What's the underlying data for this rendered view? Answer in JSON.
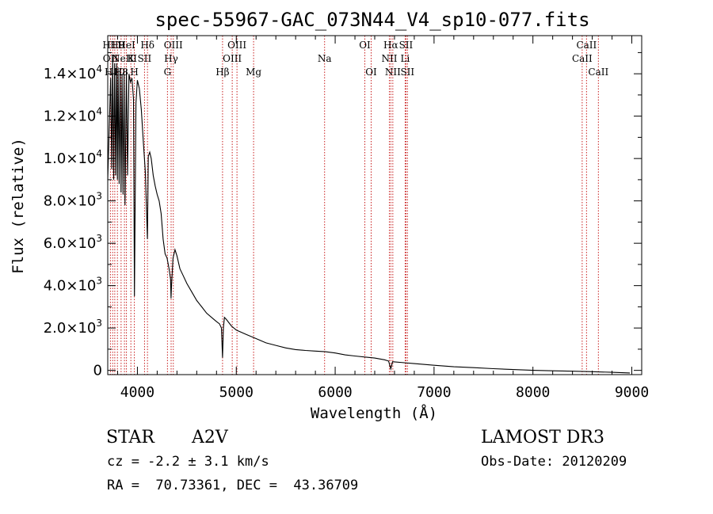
{
  "chart_data": {
    "type": "line",
    "title": "spec-55967-GAC_073N44_V4_sp10-077.fits",
    "xlabel": "Wavelength (Å)",
    "ylabel": "Flux (relative)",
    "xlim": [
      3700,
      9100
    ],
    "ylim": [
      -200,
      15800
    ],
    "x_ticks": [
      4000,
      5000,
      6000,
      7000,
      8000,
      9000
    ],
    "y_ticks": [
      {
        "value": 0,
        "mantissa": "0",
        "exp": ""
      },
      {
        "value": 2000,
        "mantissa": "2.0×10",
        "exp": "3"
      },
      {
        "value": 4000,
        "mantissa": "4.0×10",
        "exp": "3"
      },
      {
        "value": 6000,
        "mantissa": "6.0×10",
        "exp": "3"
      },
      {
        "value": 8000,
        "mantissa": "8.0×10",
        "exp": "3"
      },
      {
        "value": 10000,
        "mantissa": "1.0×10",
        "exp": "4"
      },
      {
        "value": 12000,
        "mantissa": "1.2×10",
        "exp": "4"
      },
      {
        "value": 14000,
        "mantissa": "1.4×10",
        "exp": "4"
      }
    ],
    "series": [
      {
        "name": "spectrum",
        "x": [
          3700,
          3730,
          3740,
          3750,
          3760,
          3770,
          3780,
          3790,
          3798,
          3805,
          3815,
          3825,
          3835,
          3845,
          3855,
          3865,
          3875,
          3889,
          3900,
          3915,
          3930,
          3945,
          3960,
          3970,
          3985,
          4000,
          4020,
          4040,
          4060,
          4080,
          4101,
          4110,
          4125,
          4140,
          4160,
          4180,
          4200,
          4220,
          4240,
          4260,
          4280,
          4300,
          4320,
          4335,
          4340,
          4345,
          4360,
          4380,
          4400,
          4430,
          4460,
          4500,
          4550,
          4600,
          4650,
          4700,
          4750,
          4800,
          4830,
          4850,
          4861,
          4870,
          4880,
          4900,
          4950,
          5000,
          5100,
          5200,
          5300,
          5400,
          5500,
          5600,
          5700,
          5800,
          5900,
          6000,
          6100,
          6200,
          6300,
          6400,
          6500,
          6540,
          6563,
          6580,
          6600,
          6700,
          6800,
          7000,
          7200,
          7400,
          7600,
          7800,
          8000,
          8200,
          8400,
          8600,
          8800,
          8980
        ],
        "y": [
          9000,
          13800,
          9500,
          14800,
          9000,
          14500,
          9200,
          14500,
          9000,
          14300,
          8800,
          14200,
          8400,
          14000,
          8300,
          14000,
          7800,
          14200,
          9200,
          14000,
          13600,
          13800,
          12800,
          3500,
          12600,
          13700,
          13300,
          12300,
          10800,
          9400,
          6200,
          10100,
          10300,
          10000,
          9200,
          8700,
          8300,
          8000,
          7400,
          6200,
          5500,
          5300,
          4800,
          4300,
          3400,
          4000,
          5300,
          5700,
          5400,
          4800,
          4500,
          4100,
          3700,
          3300,
          3000,
          2700,
          2500,
          2300,
          2200,
          2000,
          600,
          2000,
          2500,
          2400,
          2100,
          1900,
          1700,
          1500,
          1300,
          1180,
          1060,
          980,
          940,
          910,
          880,
          820,
          730,
          680,
          630,
          580,
          500,
          440,
          70,
          410,
          400,
          360,
          320,
          240,
          170,
          130,
          80,
          40,
          0,
          -20,
          -40,
          -60,
          -90,
          -120
        ]
      }
    ],
    "lines": [
      {
        "wl": 3727,
        "label": "OII",
        "row": 2
      },
      {
        "wl": 3750,
        "label": "H11",
        "row": 1
      },
      {
        "wl": 3771,
        "label": "H10",
        "row": 3
      },
      {
        "wl": 3798,
        "label": "H9",
        "row": 1
      },
      {
        "wl": 3835,
        "label": "H8",
        "row": 3
      },
      {
        "wl": 3869,
        "label": "NeIII",
        "row": 2
      },
      {
        "wl": 3889,
        "label": "HeI",
        "row": 1
      },
      {
        "wl": 3934,
        "label": "K",
        "row": 2
      },
      {
        "wl": 3969,
        "label": "H",
        "row": 3
      },
      {
        "wl": 4072,
        "label": "SII",
        "row": 2
      },
      {
        "wl": 4102,
        "label": "Hδ",
        "row": 1
      },
      {
        "wl": 4304,
        "label": "G",
        "row": 3
      },
      {
        "wl": 4341,
        "label": "Hγ",
        "row": 2
      },
      {
        "wl": 4363,
        "label": "OIII",
        "row": 1
      },
      {
        "wl": 4861,
        "label": "Hβ",
        "row": 3
      },
      {
        "wl": 4959,
        "label": "OIII",
        "row": 2
      },
      {
        "wl": 5007,
        "label": "OIII",
        "row": 1
      },
      {
        "wl": 5175,
        "label": "Mg",
        "row": 3
      },
      {
        "wl": 5893,
        "label": "Na",
        "row": 2
      },
      {
        "wl": 6300,
        "label": "OI",
        "row": 1
      },
      {
        "wl": 6364,
        "label": "OI",
        "row": 3
      },
      {
        "wl": 6548,
        "label": "NII",
        "row": 2
      },
      {
        "wl": 6563,
        "label": "Hα",
        "row": 1
      },
      {
        "wl": 6583,
        "label": "NII",
        "row": 3
      },
      {
        "wl": 6708,
        "label": "Li",
        "row": 2
      },
      {
        "wl": 6716,
        "label": "SII",
        "row": 1
      },
      {
        "wl": 6731,
        "label": "SII",
        "row": 3
      },
      {
        "wl": 8498,
        "label": "CaII",
        "row": 2
      },
      {
        "wl": 8542,
        "label": "CaII",
        "row": 1
      },
      {
        "wl": 8662,
        "label": "CaII",
        "row": 3
      }
    ]
  },
  "info": {
    "object_class": "STAR",
    "subclass": "A2V",
    "survey": "LAMOST DR3",
    "cz": "cz = -2.2 ± 3.1 km/s",
    "obs_date": "Obs-Date: 20120209",
    "coords": "RA =  70.73361, DEC =  43.36709"
  }
}
